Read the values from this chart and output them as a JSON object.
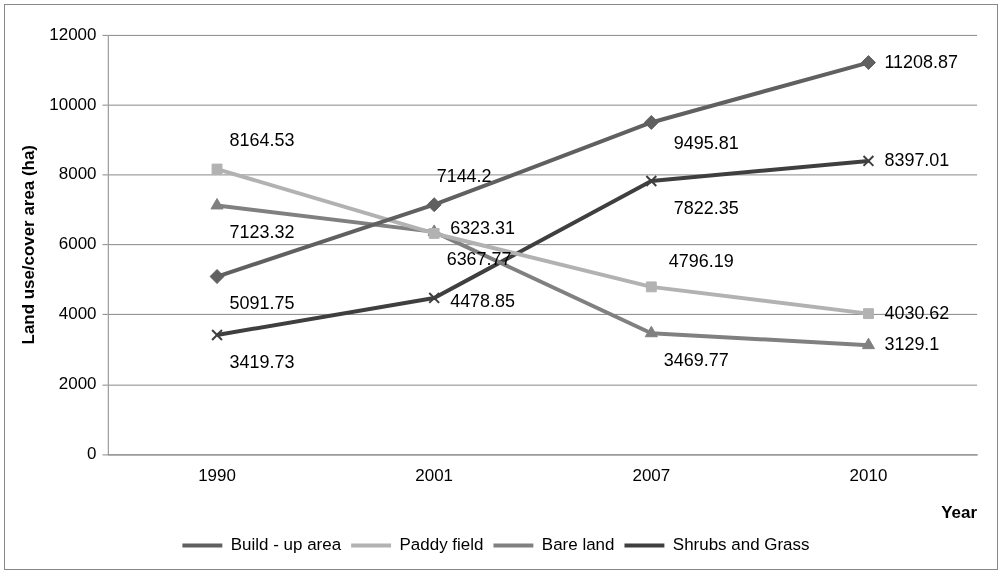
{
  "chart_data": {
    "type": "line",
    "xlabel": "Year",
    "ylabel": "Land use/cover area (ha)",
    "categories": [
      "1990",
      "2001",
      "2007",
      "2010"
    ],
    "series": [
      {
        "name": "Build - up area",
        "color": "#606060",
        "marker": "diamond",
        "values": [
          5091.75,
          7144.2,
          9495.81,
          11208.87
        ]
      },
      {
        "name": "Paddy field",
        "color": "#b2b2b2",
        "marker": "square",
        "values": [
          8164.53,
          6323.31,
          4796.19,
          4030.62
        ]
      },
      {
        "name": "Bare land",
        "color": "#808080",
        "marker": "triangle",
        "values": [
          7123.32,
          6367.77,
          3469.77,
          3129.1
        ]
      },
      {
        "name": "Shrubs and Grass",
        "color": "#3f3f3f",
        "marker": "cross",
        "values": [
          3419.73,
          4478.85,
          7822.35,
          8397.01
        ]
      }
    ],
    "ylim": [
      0,
      12000
    ],
    "yticks": [
      0,
      2000,
      4000,
      6000,
      8000,
      10000,
      12000
    ],
    "grid": "y",
    "legend": "bottom",
    "data_labels": true,
    "line_style": "solid"
  }
}
